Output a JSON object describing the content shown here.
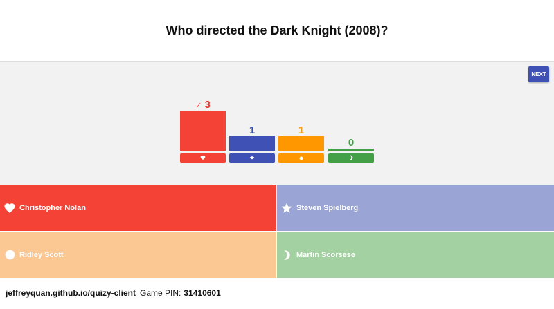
{
  "question": {
    "title": "Who directed the Dark Knight (2008)?"
  },
  "controls": {
    "next_label": "NEXT"
  },
  "results": {
    "bars": [
      {
        "count": "3",
        "correct": true,
        "check_icon": "✓",
        "color": "#f44336",
        "icon": "heart-icon"
      },
      {
        "count": "1",
        "correct": false,
        "color": "#3f51b5",
        "icon": "star-icon"
      },
      {
        "count": "1",
        "correct": false,
        "color": "#ff9800",
        "icon": "circle-icon"
      },
      {
        "count": "0",
        "correct": false,
        "color": "#43a047",
        "icon": "moon-icon"
      }
    ]
  },
  "answers": [
    {
      "label": "Christopher Nolan",
      "icon": "heart-icon",
      "color": "#f44336"
    },
    {
      "label": "Steven Spielberg",
      "icon": "star-icon",
      "color": "#9aa5d6"
    },
    {
      "label": "Ridley Scott",
      "icon": "circle-icon",
      "color": "#fbc793"
    },
    {
      "label": "Martin Scorsese",
      "icon": "moon-icon",
      "color": "#a3d1a2"
    }
  ],
  "footer": {
    "site": "jeffreyquan.github.io/quizy-client",
    "pin_label": "Game PIN:",
    "pin_value": "31410601"
  }
}
